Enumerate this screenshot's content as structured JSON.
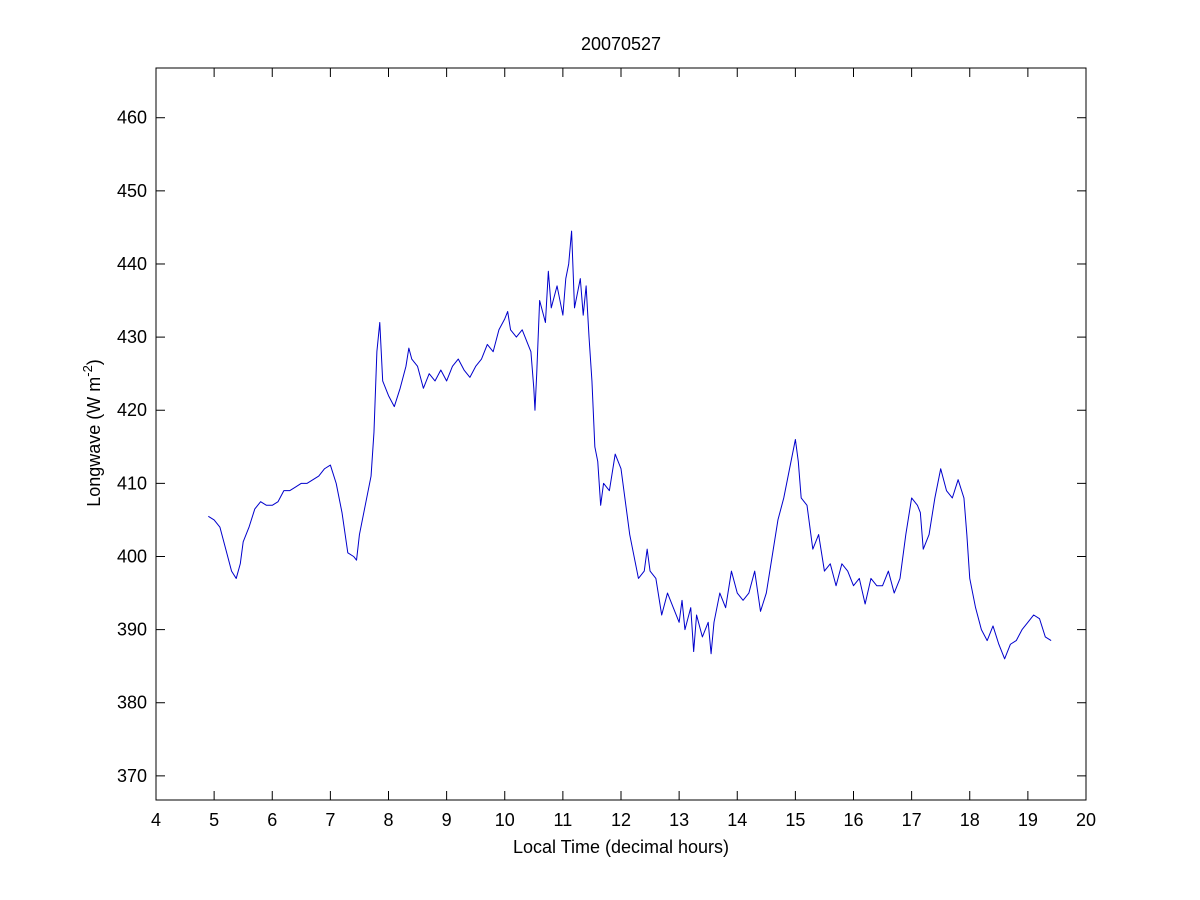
{
  "chart_data": {
    "type": "line",
    "title": "20070527",
    "x_label": "Local Time (decimal hours)",
    "y_label": [
      "Longwave (W m",
      "-2",
      ")"
    ],
    "xlim": [
      4,
      20
    ],
    "ylim": [
      366.7,
      466.8
    ],
    "xticks": [
      4,
      5,
      6,
      7,
      8,
      9,
      10,
      11,
      12,
      13,
      14,
      15,
      16,
      17,
      18,
      19,
      20
    ],
    "yticks": [
      370,
      380,
      390,
      400,
      410,
      420,
      430,
      440,
      450,
      460
    ],
    "series": [
      {
        "color": "#0000cc",
        "x": [
          4.9,
          5.0,
          5.1,
          5.2,
          5.3,
          5.38,
          5.45,
          5.5,
          5.6,
          5.7,
          5.8,
          5.9,
          6.0,
          6.1,
          6.2,
          6.3,
          6.4,
          6.5,
          6.6,
          6.7,
          6.8,
          6.9,
          7.0,
          7.1,
          7.2,
          7.3,
          7.4,
          7.45,
          7.5,
          7.6,
          7.7,
          7.75,
          7.8,
          7.85,
          7.9,
          8.0,
          8.1,
          8.2,
          8.3,
          8.35,
          8.4,
          8.5,
          8.6,
          8.7,
          8.8,
          8.9,
          9.0,
          9.1,
          9.2,
          9.3,
          9.4,
          9.5,
          9.6,
          9.7,
          9.8,
          9.9,
          10.0,
          10.05,
          10.1,
          10.2,
          10.3,
          10.4,
          10.45,
          10.5,
          10.52,
          10.55,
          10.6,
          10.7,
          10.75,
          10.8,
          10.9,
          11.0,
          11.05,
          11.1,
          11.15,
          11.2,
          11.3,
          11.35,
          11.4,
          11.45,
          11.5,
          11.55,
          11.6,
          11.65,
          11.7,
          11.8,
          11.9,
          12.0,
          12.1,
          12.15,
          12.2,
          12.3,
          12.4,
          12.45,
          12.5,
          12.6,
          12.7,
          12.8,
          12.9,
          13.0,
          13.05,
          13.1,
          13.2,
          13.25,
          13.3,
          13.4,
          13.5,
          13.55,
          13.6,
          13.7,
          13.8,
          13.9,
          14.0,
          14.1,
          14.2,
          14.3,
          14.4,
          14.5,
          14.6,
          14.7,
          14.8,
          14.9,
          15.0,
          15.05,
          15.1,
          15.2,
          15.3,
          15.4,
          15.5,
          15.6,
          15.7,
          15.8,
          15.9,
          16.0,
          16.1,
          16.2,
          16.3,
          16.4,
          16.5,
          16.6,
          16.7,
          16.8,
          16.9,
          17.0,
          17.1,
          17.15,
          17.2,
          17.3,
          17.4,
          17.5,
          17.6,
          17.7,
          17.8,
          17.9,
          17.95,
          18.0,
          18.1,
          18.2,
          18.3,
          18.4,
          18.5,
          18.6,
          18.7,
          18.8,
          18.9,
          19.0,
          19.1,
          19.2,
          19.3,
          19.4
        ],
        "values": [
          405.5,
          405,
          404,
          401,
          398,
          397,
          399,
          402,
          404,
          406.5,
          407.5,
          407,
          407,
          407.5,
          409,
          409,
          409.5,
          410,
          410,
          410.5,
          411,
          412,
          412.5,
          410,
          406,
          400.5,
          400,
          399.5,
          403,
          407,
          411,
          417,
          428,
          432,
          424,
          422,
          420.5,
          423,
          426,
          428.5,
          427,
          426,
          423,
          425,
          424,
          425.5,
          424,
          426,
          427,
          425.5,
          424.5,
          426,
          427,
          429,
          428,
          431,
          432.5,
          433.5,
          431,
          430,
          431,
          429,
          428,
          423,
          420,
          425,
          435,
          432,
          439,
          434,
          437,
          433,
          438,
          440,
          444.5,
          434,
          438,
          433,
          437,
          430,
          424,
          415,
          413,
          407,
          410,
          409,
          414,
          412,
          406,
          403,
          401,
          397,
          398,
          401,
          398,
          397,
          392,
          395,
          393,
          391,
          394,
          390,
          393,
          387,
          392,
          389,
          391,
          386.7,
          391,
          395,
          393,
          398,
          395,
          394,
          395,
          398,
          392.5,
          395,
          400,
          405,
          408,
          412,
          416,
          413,
          408,
          407,
          401,
          403,
          398,
          399,
          396,
          399,
          398,
          396,
          397,
          393.5,
          397,
          396,
          396,
          398,
          395,
          397,
          403,
          408,
          407,
          406,
          401,
          403,
          408,
          412,
          409,
          408,
          410.5,
          408,
          403,
          397,
          393,
          390,
          388.5,
          390.5,
          388,
          386,
          388,
          388.5,
          390,
          391,
          392,
          391.5,
          389,
          388.5
        ]
      }
    ]
  }
}
